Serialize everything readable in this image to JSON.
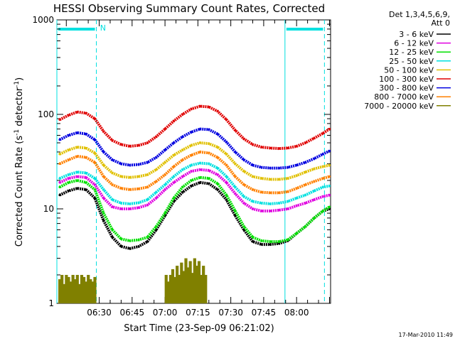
{
  "chart_data": {
    "type": "line",
    "title": "HESSI Observing Summary Count Rates, Corrected",
    "xlabel": "Start Time (23-Sep-09 06:21:02)",
    "ylabel_parts": [
      "Corrected Count Rate (s",
      "-1",
      " detector",
      "-1",
      ")"
    ],
    "yscale": "log",
    "ylim": [
      1,
      1000
    ],
    "xlim_min": [
      -19.3,
      105.5
    ],
    "y_ticks": [
      {
        "value": 1,
        "label": "1"
      },
      {
        "value": 10,
        "label": "10"
      },
      {
        "value": 100,
        "label": "100"
      },
      {
        "value": 1000,
        "label": "1000"
      }
    ],
    "x_ticks": [
      {
        "value": 0,
        "label": "06:30"
      },
      {
        "value": 15,
        "label": "06:45"
      },
      {
        "value": 30,
        "label": "07:00"
      },
      {
        "value": 45,
        "label": "07:15"
      },
      {
        "value": 60,
        "label": "07:30"
      },
      {
        "value": 75,
        "label": "07:45"
      },
      {
        "value": 90,
        "label": "08:00"
      }
    ],
    "legend_header": [
      "Det 1,3,4,5,6,9,",
      "Att 0"
    ],
    "night_intervals_min": [
      [
        -19.3,
        -1.3
      ],
      [
        84.7,
        102.7
      ]
    ],
    "marker_lines_min": {
      "solid": [
        -19.3,
        84.7
      ],
      "dashed": [
        -1.3,
        102.7
      ]
    },
    "marker_labels": [
      {
        "text": "N",
        "x_min": 0.4
      }
    ],
    "stamp": "17-Mar-2010 11:49",
    "series": [
      {
        "name": "3 - 6 keV",
        "color": "#000000",
        "x": [
          -18,
          -14,
          -10,
          -6,
          -2,
          2,
          6,
          10,
          14,
          18,
          22,
          26,
          30,
          34,
          38,
          42,
          46,
          50,
          54,
          58,
          62,
          66,
          70,
          74,
          78,
          82,
          86,
          90,
          94,
          98,
          102,
          105
        ],
        "y": [
          14,
          15.5,
          16.5,
          16,
          13,
          7.5,
          5,
          4,
          3.8,
          4,
          4.5,
          6,
          8.5,
          12,
          15,
          17.5,
          19,
          18.5,
          16,
          12.5,
          8.5,
          6,
          4.5,
          4.2,
          4.2,
          4.3,
          4.6,
          5.5,
          6.5,
          8,
          9.5,
          10
        ]
      },
      {
        "name": "6 - 12 keV",
        "color": "#e000e0",
        "x": [
          -18,
          -14,
          -10,
          -6,
          -2,
          2,
          6,
          10,
          14,
          18,
          22,
          26,
          30,
          34,
          38,
          42,
          46,
          50,
          54,
          58,
          62,
          66,
          70,
          74,
          78,
          82,
          86,
          90,
          94,
          98,
          102,
          105
        ],
        "y": [
          19,
          21,
          22,
          21.5,
          18,
          13,
          10.5,
          10,
          10,
          10.3,
          11,
          13,
          16,
          19,
          22,
          25,
          26,
          25.5,
          23,
          19,
          14.5,
          11.5,
          10,
          9.5,
          9.5,
          9.7,
          10,
          10.8,
          11.5,
          12.5,
          13.5,
          14
        ]
      },
      {
        "name": "12 - 25 keV",
        "color": "#00e000",
        "x": [
          -18,
          -14,
          -10,
          -6,
          -2,
          2,
          6,
          10,
          14,
          18,
          22,
          26,
          30,
          34,
          38,
          42,
          46,
          50,
          54,
          58,
          62,
          66,
          70,
          74,
          78,
          82,
          86,
          90,
          94,
          98,
          102,
          105
        ],
        "y": [
          17,
          19,
          20,
          19,
          16,
          9,
          6,
          4.8,
          4.6,
          4.7,
          5,
          6.5,
          9,
          13,
          17,
          20,
          21.5,
          21,
          18.5,
          14,
          9.5,
          6.5,
          5,
          4.6,
          4.5,
          4.5,
          4.7,
          5.5,
          6.5,
          8,
          9.5,
          10.5
        ]
      },
      {
        "name": "25 - 50 keV",
        "color": "#00e0e0",
        "x": [
          -18,
          -14,
          -10,
          -6,
          -2,
          2,
          6,
          10,
          14,
          18,
          22,
          26,
          30,
          34,
          38,
          42,
          46,
          50,
          54,
          58,
          62,
          66,
          70,
          74,
          78,
          82,
          86,
          90,
          94,
          98,
          102,
          105
        ],
        "y": [
          21,
          23,
          24.5,
          24,
          21,
          16,
          12.5,
          11.5,
          11.3,
          11.6,
          12.5,
          15,
          18,
          22,
          26,
          29,
          30.5,
          30,
          27,
          22,
          17,
          13.5,
          12,
          11.5,
          11.3,
          11.5,
          12,
          13,
          14,
          15.5,
          17,
          17.5
        ]
      },
      {
        "name": "50 - 100 keV",
        "color": "#e0c000",
        "x": [
          -18,
          -14,
          -10,
          -6,
          -2,
          2,
          6,
          10,
          14,
          18,
          22,
          26,
          30,
          34,
          38,
          42,
          46,
          50,
          54,
          58,
          62,
          66,
          70,
          74,
          78,
          82,
          86,
          90,
          94,
          98,
          102,
          105
        ],
        "y": [
          38,
          42,
          45,
          44,
          39,
          29,
          24,
          22,
          21.5,
          22,
          23,
          26,
          31,
          37,
          42,
          47,
          50,
          49,
          45,
          38,
          30,
          25,
          22,
          21,
          20.5,
          20.5,
          21,
          22.5,
          24.5,
          26.5,
          28,
          29
        ]
      },
      {
        "name": "100 - 300 keV",
        "color": "#e00000",
        "x": [
          -18,
          -14,
          -10,
          -6,
          -2,
          2,
          6,
          10,
          14,
          18,
          22,
          26,
          30,
          34,
          38,
          42,
          46,
          50,
          54,
          58,
          62,
          66,
          70,
          74,
          78,
          82,
          86,
          90,
          94,
          98,
          102,
          105
        ],
        "y": [
          88,
          98,
          106,
          103,
          90,
          66,
          53,
          48,
          46,
          47,
          50,
          58,
          70,
          85,
          100,
          114,
          122,
          120,
          108,
          88,
          68,
          55,
          48,
          45,
          44,
          43.5,
          44,
          46,
          50,
          56,
          63,
          70
        ]
      },
      {
        "name": "300 - 800 keV",
        "color": "#0000e0",
        "x": [
          -18,
          -14,
          -10,
          -6,
          -2,
          2,
          6,
          10,
          14,
          18,
          22,
          26,
          30,
          34,
          38,
          42,
          46,
          50,
          54,
          58,
          62,
          66,
          70,
          74,
          78,
          82,
          86,
          90,
          94,
          98,
          102,
          105
        ],
        "y": [
          54,
          60,
          64,
          62,
          54,
          40,
          33,
          30,
          29,
          29.5,
          31,
          35,
          42,
          50,
          58,
          65,
          70,
          69,
          62,
          51,
          40,
          33,
          29,
          27.5,
          27,
          27,
          27.5,
          29,
          31,
          34,
          38,
          41
        ]
      },
      {
        "name": "800 - 7000 keV",
        "color": "#ff8000",
        "x": [
          -18,
          -14,
          -10,
          -6,
          -2,
          2,
          6,
          10,
          14,
          18,
          22,
          26,
          30,
          34,
          38,
          42,
          46,
          50,
          54,
          58,
          62,
          66,
          70,
          74,
          78,
          82,
          86,
          90,
          94,
          98,
          102,
          105
        ],
        "y": [
          30,
          33,
          36,
          35,
          31,
          22,
          18,
          16.5,
          16,
          16.3,
          17,
          19.5,
          23,
          28,
          33,
          37,
          40,
          39,
          35,
          29,
          22,
          18,
          16,
          15,
          14.8,
          14.8,
          15.2,
          16.5,
          18,
          19.5,
          21,
          22
        ]
      },
      {
        "name": "7000 - 20000 keV",
        "color": "#808000",
        "x": [
          -18,
          -17,
          -16,
          -15,
          -14,
          -13,
          -12,
          -11,
          -10,
          -9,
          -8,
          -7,
          -6,
          -5,
          -4,
          -3,
          -2,
          30.5,
          31.5,
          32.5,
          33.5,
          34.5,
          35.5,
          36.5,
          37.5,
          38.5,
          39.5,
          40.5,
          41.5,
          42.5,
          43.5,
          44.5,
          45.5,
          46.5,
          47.5,
          48.5
        ],
        "y": [
          1.8,
          2,
          1.6,
          2,
          1.9,
          1.7,
          2,
          1.8,
          2,
          1.6,
          2,
          1.9,
          1.7,
          2,
          1.8,
          1.7,
          1.9,
          2,
          1.7,
          2,
          2.3,
          1.9,
          2.5,
          2,
          2.7,
          2.2,
          3,
          2.4,
          2.8,
          2.1,
          3,
          2.5,
          2.8,
          2,
          2.5,
          2
        ]
      }
    ]
  }
}
